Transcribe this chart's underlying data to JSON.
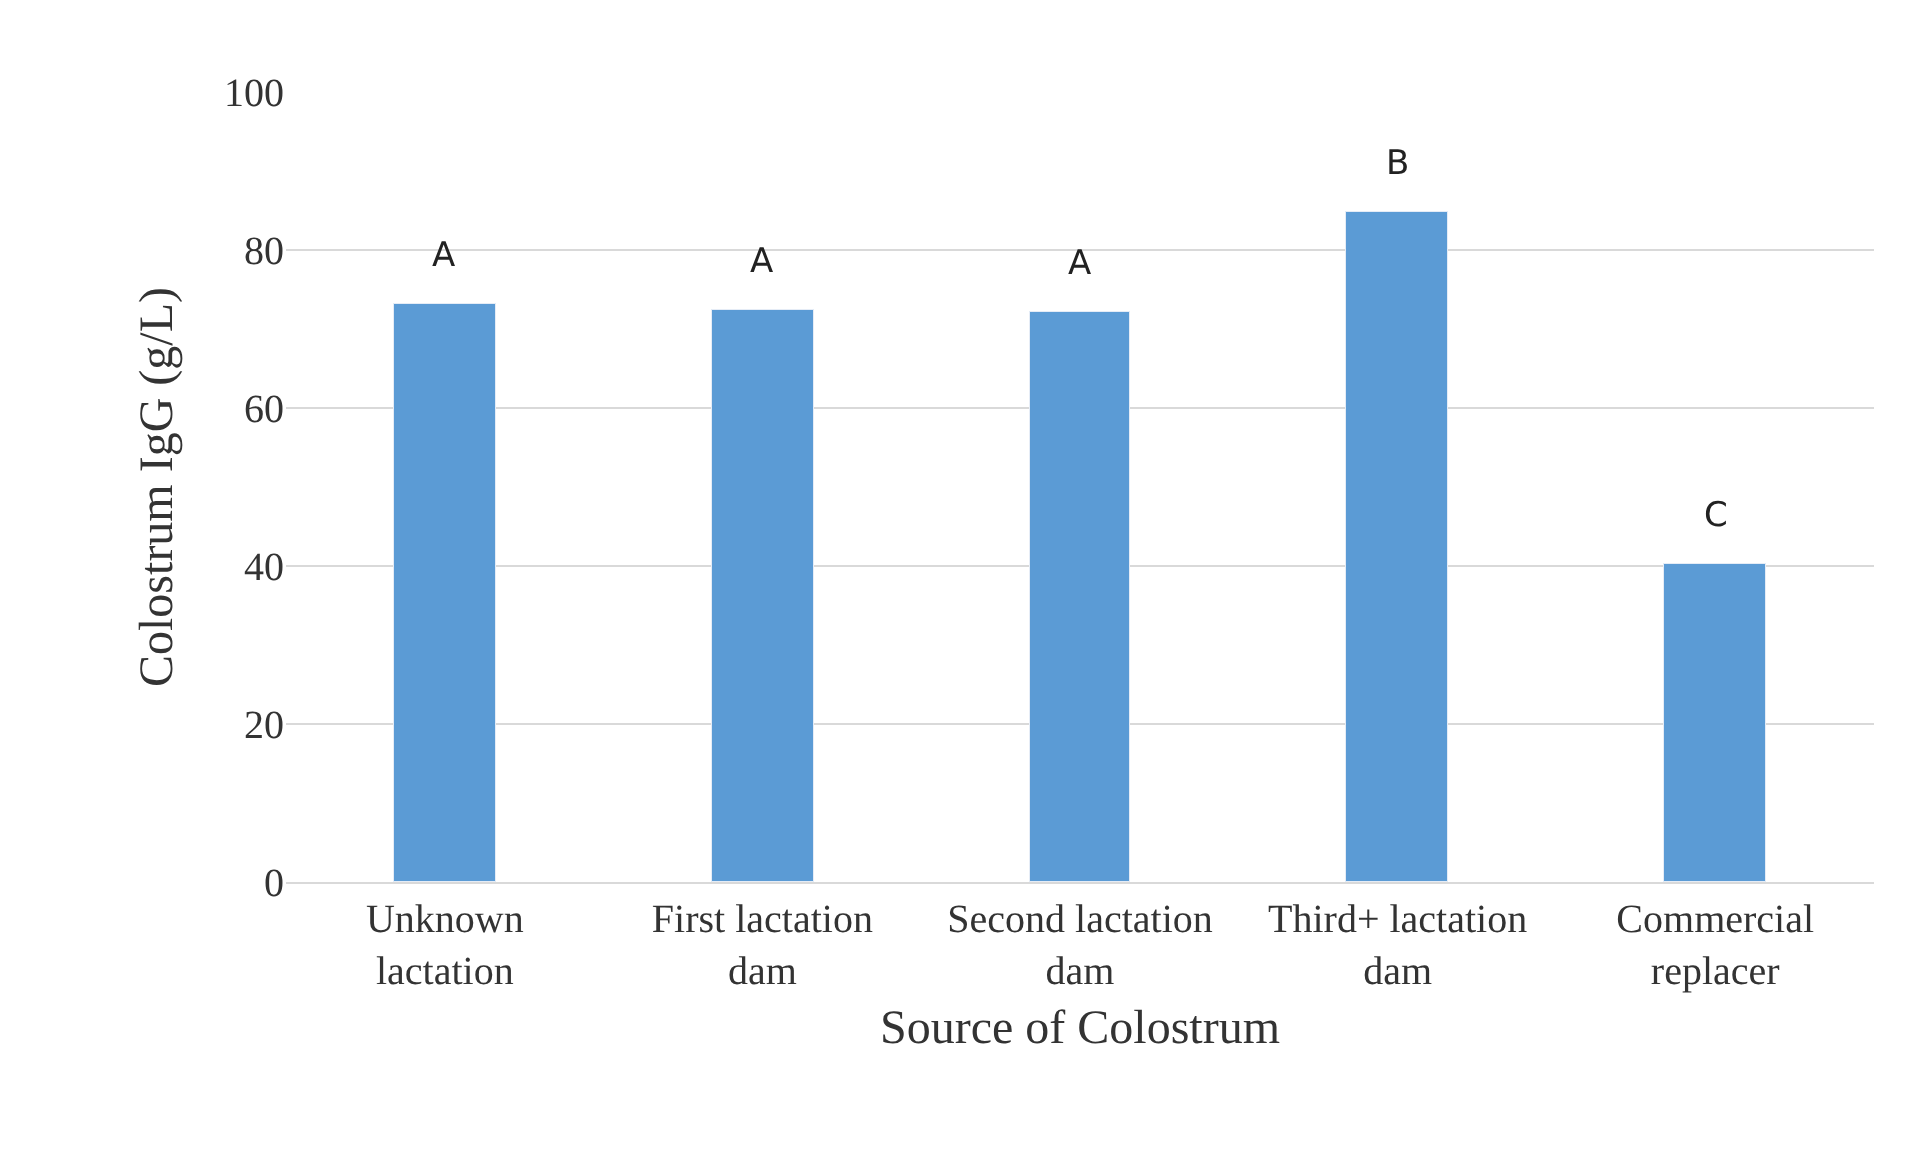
{
  "chart_data": {
    "type": "bar",
    "xlabel": "Source of Colostrum",
    "ylabel": "Colostrum IgG (g/L)",
    "categories": [
      "Unknown lactation",
      "First lactation dam",
      "Second lactation dam",
      "Third+ lactation dam",
      "Commercial replacer"
    ],
    "values": [
      73.2,
      72.4,
      72.2,
      84.8,
      40.3
    ],
    "color": "#5b9bd5",
    "ylim": [
      0,
      100
    ],
    "yticks": [
      0,
      20,
      40,
      60,
      80,
      100
    ],
    "grid": "y",
    "legend": false,
    "annotations": [
      {
        "text": "A",
        "x": "Unknown lactation",
        "y": 73.2
      },
      {
        "text": "A",
        "x": "First lactation dam",
        "y": 72.4
      },
      {
        "text": "A",
        "x": "Second lactation dam",
        "y": 72.2
      },
      {
        "text": "B",
        "x": "Third+ lactation dam",
        "y": 84.8
      },
      {
        "text": "C",
        "x": "Commercial replacer",
        "y": 40.3
      }
    ]
  }
}
